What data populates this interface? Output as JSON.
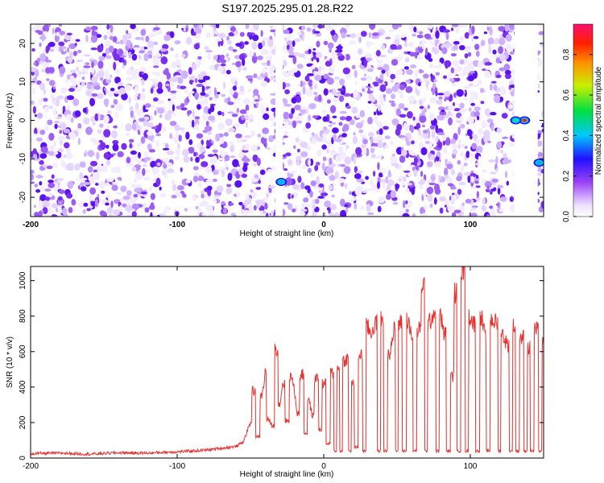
{
  "title": "S197.2025.295.01.28.R22",
  "chart_data": [
    {
      "type": "heatmap",
      "xlabel": "Height of straight line (km)",
      "ylabel": "Frequency (Hz)",
      "xlim": [
        -200,
        150
      ],
      "ylim": [
        -25,
        25
      ],
      "x_ticks": [
        -200,
        -100,
        0,
        100
      ],
      "y_ticks": [
        -20,
        -10,
        0,
        10,
        20
      ],
      "colorbar": {
        "label": "Normalized spectral amplitude",
        "range": [
          0,
          0.95
        ],
        "ticks": [
          0,
          0.2,
          0.4,
          0.6,
          0.8
        ]
      },
      "gaps_x": [
        [
          -33,
          -28
        ],
        [
          130,
          146
        ]
      ],
      "hotspots": [
        {
          "x": 137,
          "y": 0,
          "amp": 0.9
        },
        {
          "x": 131,
          "y": 0,
          "amp": 0.45
        },
        {
          "x": 147,
          "y": -11,
          "amp": 0.4
        },
        {
          "x": -29,
          "y": -16,
          "amp": 0.35
        }
      ]
    },
    {
      "type": "line",
      "xlabel": "Height of straight line (km)",
      "ylabel": "SNR (10 * v/v)",
      "xlim": [
        -200,
        150
      ],
      "ylim": [
        0,
        1080
      ],
      "x_ticks": [
        -200,
        -100,
        0,
        100
      ],
      "y_ticks": [
        0,
        200,
        400,
        600,
        800,
        1000
      ],
      "series": [
        {
          "color": "#e8302e",
          "x": [
            -200,
            -180,
            -160,
            -140,
            -120,
            -110,
            -100,
            -90,
            -80,
            -70,
            -60,
            -55,
            -50,
            -48,
            -45,
            -42,
            -40,
            -38,
            -35,
            -32,
            -30,
            -28,
            -25,
            -22,
            -20,
            -18,
            -15,
            -12,
            -10,
            -8,
            -5,
            -2,
            0,
            3,
            6,
            8,
            10,
            12,
            14,
            16,
            18,
            20,
            22,
            25,
            28,
            30,
            32,
            35,
            38,
            40,
            42,
            45,
            48,
            50,
            52,
            55,
            58,
            60,
            62,
            65,
            68,
            70,
            72,
            75,
            78,
            80,
            82,
            85,
            88,
            90,
            92,
            95,
            98,
            100,
            102,
            105,
            108,
            110,
            112,
            115,
            118,
            120,
            122,
            125,
            128,
            130,
            132,
            135,
            138,
            140,
            142,
            145,
            148,
            150
          ],
          "y": [
            25,
            28,
            22,
            30,
            28,
            32,
            35,
            40,
            45,
            55,
            65,
            90,
            200,
            380,
            120,
            350,
            480,
            220,
            180,
            620,
            300,
            420,
            210,
            460,
            380,
            250,
            470,
            140,
            330,
            240,
            450,
            160,
            420,
            80,
            480,
            40,
            500,
            40,
            550,
            560,
            40,
            420,
            60,
            580,
            40,
            740,
            700,
            760,
            40,
            780,
            40,
            600,
            720,
            40,
            760,
            40,
            780,
            660,
            40,
            720,
            980,
            40,
            760,
            820,
            40,
            800,
            700,
            40,
            460,
            930,
            40,
            1060,
            40,
            800,
            760,
            40,
            780,
            680,
            40,
            780,
            760,
            40,
            700,
            640,
            40,
            740,
            40,
            680,
            40,
            620,
            40,
            720,
            40,
            640
          ]
        }
      ]
    }
  ]
}
